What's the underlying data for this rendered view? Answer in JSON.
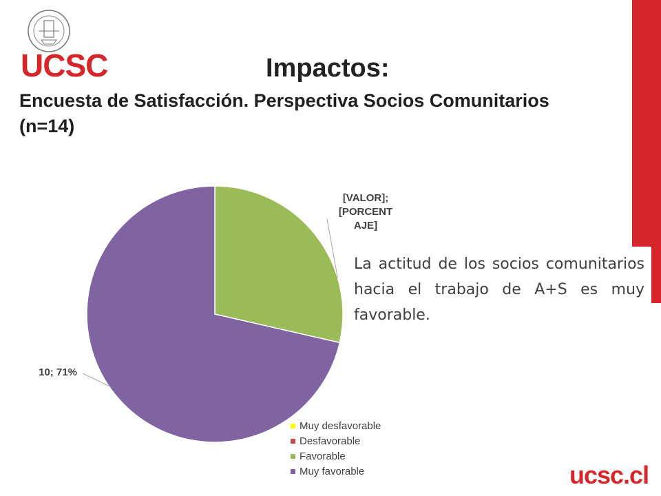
{
  "header": {
    "logo_text": "UCSC",
    "title": "Impactos:",
    "subtitle": "Encuesta de Satisfacción. Perspectiva Socios Comunitarios (n=14)"
  },
  "body_text": "La actitud de los socios comunitarios hacia el trabajo de A+S es muy favorable.",
  "footer": {
    "logo_text": "ucsc.cl"
  },
  "colors": {
    "brand_red": "#d6262b"
  },
  "chart_data": {
    "type": "pie",
    "categories": [
      "Muy desfavorable",
      "Desfavorable",
      "Favorable",
      "Muy favorable"
    ],
    "values": [
      0,
      0,
      4,
      10
    ],
    "colors": [
      "#ffff00",
      "#c0504d",
      "#9bbb59",
      "#8064a2"
    ],
    "data_labels": [
      "",
      "",
      "[VALOR]; [PORCENTAJE]",
      "10; 71%"
    ],
    "legend_position": "bottom-right"
  }
}
